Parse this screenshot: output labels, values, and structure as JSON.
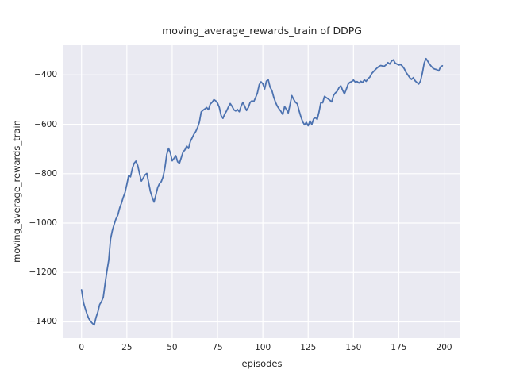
{
  "chart_data": {
    "type": "line",
    "title": "moving_average_rewards_train of DDPG",
    "xlabel": "episodes",
    "ylabel": "moving_average_rewards_train",
    "legend": null,
    "grid": true,
    "style": "seaborn-darkgrid",
    "xlim": [
      -9.95,
      208.95
    ],
    "ylim": [
      -1466,
      -280
    ],
    "xticks": [
      0,
      25,
      50,
      75,
      100,
      125,
      150,
      175,
      200
    ],
    "xtick_labels": [
      "0",
      "25",
      "50",
      "75",
      "100",
      "125",
      "150",
      "175",
      "200"
    ],
    "yticks": [
      -400,
      -600,
      -800,
      -1000,
      -1200,
      -1400
    ],
    "ytick_labels": [
      "−400",
      "−600",
      "−800",
      "−1000",
      "−1200",
      "−1400"
    ],
    "series_name": "moving_average_rewards_train",
    "x_start": 0,
    "x_step": 1,
    "n_points": 200,
    "y": [
      -1270,
      -1320,
      -1345,
      -1368,
      -1387,
      -1398,
      -1406,
      -1413,
      -1382,
      -1360,
      -1330,
      -1318,
      -1300,
      -1245,
      -1195,
      -1150,
      -1065,
      -1030,
      -1005,
      -983,
      -968,
      -940,
      -920,
      -896,
      -876,
      -843,
      -807,
      -813,
      -780,
      -758,
      -749,
      -767,
      -800,
      -830,
      -818,
      -805,
      -799,
      -836,
      -873,
      -896,
      -915,
      -886,
      -856,
      -840,
      -832,
      -812,
      -775,
      -722,
      -697,
      -716,
      -748,
      -738,
      -727,
      -752,
      -758,
      -735,
      -712,
      -704,
      -688,
      -698,
      -670,
      -655,
      -640,
      -629,
      -613,
      -591,
      -550,
      -543,
      -538,
      -532,
      -541,
      -518,
      -511,
      -500,
      -505,
      -514,
      -532,
      -565,
      -576,
      -558,
      -546,
      -530,
      -516,
      -527,
      -541,
      -546,
      -540,
      -549,
      -527,
      -511,
      -527,
      -544,
      -532,
      -511,
      -505,
      -508,
      -492,
      -473,
      -440,
      -428,
      -436,
      -457,
      -425,
      -420,
      -450,
      -463,
      -490,
      -511,
      -527,
      -538,
      -548,
      -560,
      -528,
      -540,
      -554,
      -520,
      -484,
      -499,
      -511,
      -517,
      -545,
      -570,
      -590,
      -602,
      -592,
      -606,
      -586,
      -601,
      -578,
      -573,
      -580,
      -550,
      -512,
      -513,
      -487,
      -492,
      -497,
      -503,
      -509,
      -483,
      -473,
      -466,
      -452,
      -444,
      -462,
      -477,
      -459,
      -438,
      -430,
      -427,
      -421,
      -429,
      -427,
      -433,
      -426,
      -431,
      -420,
      -426,
      -415,
      -409,
      -395,
      -387,
      -379,
      -372,
      -366,
      -362,
      -364,
      -365,
      -359,
      -350,
      -356,
      -344,
      -339,
      -352,
      -356,
      -360,
      -358,
      -365,
      -375,
      -390,
      -400,
      -411,
      -418,
      -411,
      -424,
      -431,
      -437,
      -424,
      -392,
      -352,
      -334,
      -345,
      -357,
      -366,
      -374,
      -377,
      -379,
      -384,
      -368,
      -363
    ],
    "colors": {
      "line": "#4C72B0",
      "axes_background": "#EAEAF2",
      "grid": "#FFFFFF",
      "text": "#262626",
      "figure_background": "#FFFFFF"
    }
  }
}
